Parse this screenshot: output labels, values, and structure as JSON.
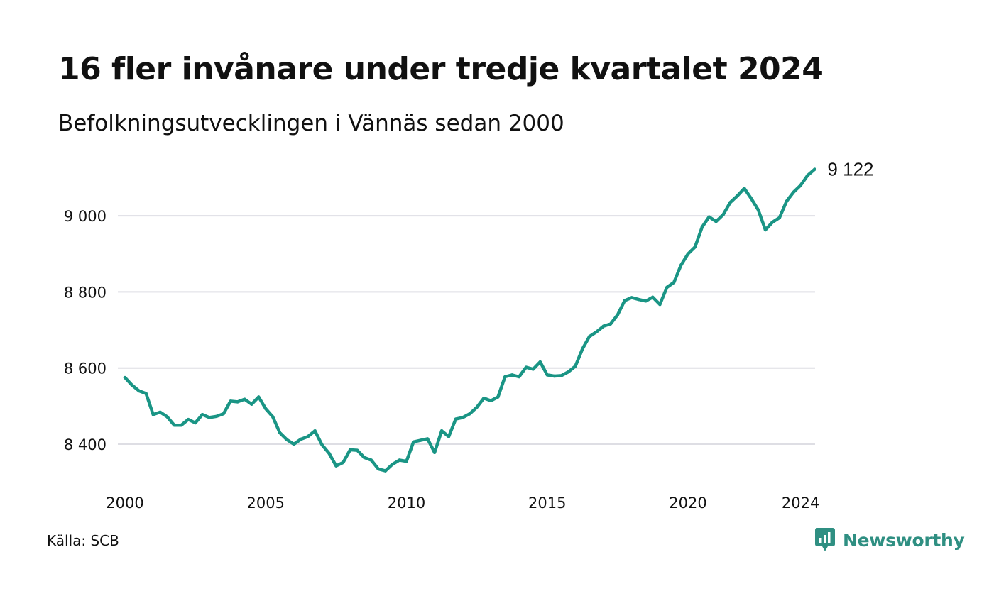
{
  "header": {
    "title": "16 fler invånare under tredje kvartalet 2024",
    "subtitle": "Befolkningsutvecklingen i Vännäs sedan 2000"
  },
  "footer": {
    "source": "Källa: SCB",
    "brand": "Newsworthy",
    "brand_icon": "newsworthy-logo-icon"
  },
  "colors": {
    "line": "#1a9585",
    "grid": "#dedee4",
    "text": "#111111",
    "brand": "#2f8f82"
  },
  "chart_data": {
    "type": "line",
    "title": "16 fler invånare under tredje kvartalet 2024",
    "subtitle": "Befolkningsutvecklingen i Vännäs sedan 2000",
    "xlabel": "",
    "ylabel": "",
    "x_ticks": [
      "2000",
      "2005",
      "2010",
      "2015",
      "2020",
      "2024"
    ],
    "y_ticks": [
      "8 400",
      "8 600",
      "8 800",
      "9 000"
    ],
    "ylim": [
      8300,
      9130
    ],
    "grid": true,
    "end_label": "9 122",
    "series": [
      {
        "x": [
          2000.0,
          2000.25,
          2000.5,
          2000.75,
          2001.0,
          2001.25,
          2001.5,
          2001.75,
          2002.0,
          2002.25,
          2002.5,
          2002.75,
          2003.0,
          2003.25,
          2003.5,
          2003.75,
          2004.0,
          2004.25,
          2004.5,
          2004.75,
          2005.0,
          2005.25,
          2005.5,
          2005.75,
          2006.0,
          2006.25,
          2006.5,
          2006.75,
          2007.0,
          2007.25,
          2007.5,
          2007.75,
          2008.0,
          2008.25,
          2008.5,
          2008.75,
          2009.0,
          2009.25,
          2009.5,
          2009.75,
          2010.0,
          2010.25,
          2010.5,
          2010.75,
          2011.0,
          2011.25,
          2011.5,
          2011.75,
          2012.0,
          2012.25,
          2012.5,
          2012.75,
          2013.0,
          2013.25,
          2013.5,
          2013.75,
          2014.0,
          2014.25,
          2014.5,
          2014.75,
          2015.0,
          2015.25,
          2015.5,
          2015.75,
          2016.0,
          2016.25,
          2016.5,
          2016.75,
          2017.0,
          2017.25,
          2017.5,
          2017.75,
          2018.0,
          2018.25,
          2018.5,
          2018.75,
          2019.0,
          2019.25,
          2019.5,
          2019.75,
          2020.0,
          2020.25,
          2020.5,
          2020.75,
          2021.0,
          2021.25,
          2021.5,
          2021.75,
          2022.0,
          2022.25,
          2022.5,
          2022.75,
          2023.0,
          2023.25,
          2023.5,
          2023.75,
          2024.0,
          2024.25,
          2024.5
        ],
        "values": [
          8575,
          8555,
          8540,
          8533,
          8478,
          8484,
          8472,
          8450,
          8450,
          8465,
          8456,
          8478,
          8470,
          8473,
          8480,
          8513,
          8511,
          8518,
          8505,
          8524,
          8493,
          8472,
          8430,
          8412,
          8400,
          8413,
          8420,
          8435,
          8398,
          8376,
          8343,
          8352,
          8385,
          8384,
          8365,
          8358,
          8335,
          8330,
          8347,
          8358,
          8355,
          8406,
          8410,
          8414,
          8378,
          8435,
          8420,
          8466,
          8470,
          8480,
          8497,
          8521,
          8514,
          8524,
          8577,
          8582,
          8577,
          8602,
          8597,
          8616,
          8582,
          8579,
          8580,
          8590,
          8605,
          8650,
          8683,
          8695,
          8710,
          8716,
          8740,
          8777,
          8785,
          8780,
          8776,
          8786,
          8767,
          8812,
          8825,
          8870,
          8900,
          8918,
          8970,
          8997,
          8985,
          9003,
          9035,
          9052,
          9072,
          9045,
          9015,
          8963,
          8983,
          8995,
          9038,
          9062,
          9080,
          9106,
          9122
        ]
      }
    ]
  }
}
